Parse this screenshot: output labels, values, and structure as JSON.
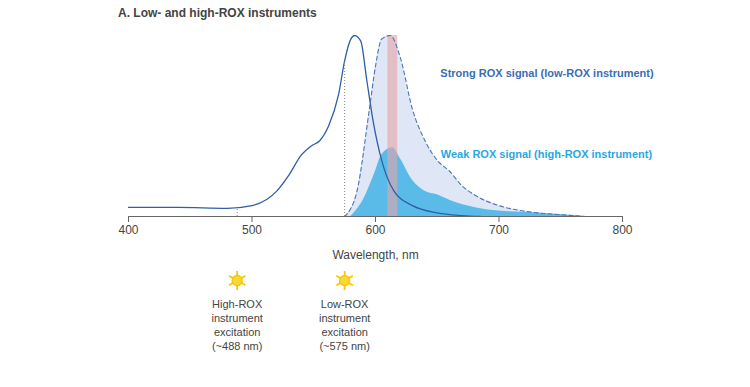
{
  "chart_data": {
    "type": "line",
    "title": "A. Low- and high-ROX instruments",
    "xlabel": "Wavelength, nm",
    "xlim": [
      400,
      800
    ],
    "xticks": [
      400,
      500,
      600,
      700,
      800
    ],
    "ylim": [
      0,
      100
    ],
    "tick_labels": "x",
    "grid": false,
    "series": [
      {
        "type": "line",
        "color": "#2f5ea8",
        "line_style": "solid",
        "x": [
          400,
          440,
          480,
          500,
          520,
          530,
          540,
          548,
          555,
          562,
          570,
          575,
          580,
          583,
          588,
          593,
          598,
          605,
          615,
          630,
          650,
          670,
          685
        ],
        "values": [
          5,
          5,
          4.5,
          6,
          14,
          23,
          34,
          39,
          42,
          50,
          67,
          86,
          98,
          100,
          97,
          75,
          53,
          31,
          14,
          6,
          2,
          0.5,
          0
        ]
      },
      {
        "name": "Strong ROX signal (low-ROX instrument)",
        "type": "area",
        "color": "#dfe6f5",
        "line_style": "dashed",
        "x": [
          575,
          585,
          595,
          600,
          605,
          612,
          620,
          630,
          640,
          650,
          660,
          670,
          680,
          700,
          720,
          750,
          770
        ],
        "values": [
          0,
          14,
          59,
          83,
          98,
          100,
          88,
          59,
          42,
          31,
          25,
          17,
          12,
          6,
          3,
          1,
          0
        ]
      },
      {
        "name": "Weak ROX signal (high-ROX instrument)",
        "type": "area",
        "color": "#5bbbe8",
        "line_style": "solid",
        "x": [
          580,
          590,
          600,
          605,
          614,
          620,
          630,
          640,
          650,
          660,
          680,
          700,
          730,
          760,
          770
        ],
        "values": [
          0,
          9,
          25,
          34,
          38,
          32,
          20,
          14,
          12,
          9,
          5,
          3,
          2,
          0.5,
          0
        ]
      }
    ],
    "detection_band": {
      "x": [
        610,
        618
      ],
      "color": "#e6a3a6"
    },
    "excitations": [
      {
        "x": 488,
        "y": 5,
        "label": "High-ROX\ninstrument\nexcitation\n(~488 nm)"
      },
      {
        "x": 575,
        "y": 86,
        "label": "Low-ROX\ninstrument\nexcitation\n(~575 nm)"
      }
    ]
  }
}
